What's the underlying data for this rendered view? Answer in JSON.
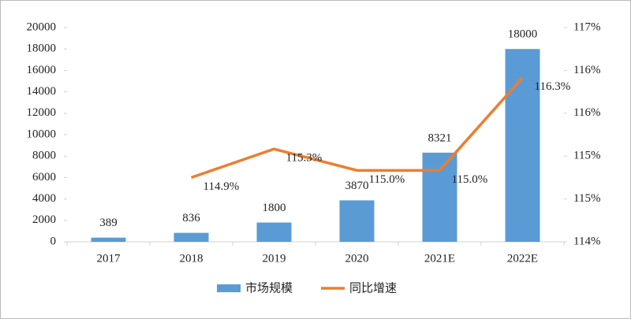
{
  "chart_data": {
    "type": "bar_line",
    "categories": [
      "2017",
      "2018",
      "2019",
      "2020",
      "2021E",
      "2022E"
    ],
    "series": [
      {
        "name": "市场规模",
        "type": "bar",
        "color": "#5b9bd5",
        "values": [
          389,
          836,
          1800,
          3870,
          8321,
          18000
        ]
      },
      {
        "name": "同比增速",
        "type": "line",
        "axis": "y2",
        "color": "#ed7d31",
        "values": [
          null,
          114.9,
          115.3,
          115.0,
          115.0,
          116.3
        ],
        "value_labels": [
          null,
          "114.9%",
          "115.3%",
          "115.0%",
          "115.0%",
          "116.3%"
        ]
      }
    ],
    "ylim": [
      0,
      20000
    ],
    "yticks": [
      0,
      2000,
      4000,
      6000,
      8000,
      10000,
      12000,
      14000,
      16000,
      18000,
      20000
    ],
    "y2lim": [
      114,
      117
    ],
    "y2ticks": [
      {
        "value": 114,
        "label": "114%"
      },
      {
        "value": 114.6,
        "label": "115%"
      },
      {
        "value": 115.2,
        "label": "115%"
      },
      {
        "value": 115.8,
        "label": "116%"
      },
      {
        "value": 116.4,
        "label": "116%"
      },
      {
        "value": 117,
        "label": "117%"
      }
    ],
    "legend": "bottom"
  }
}
